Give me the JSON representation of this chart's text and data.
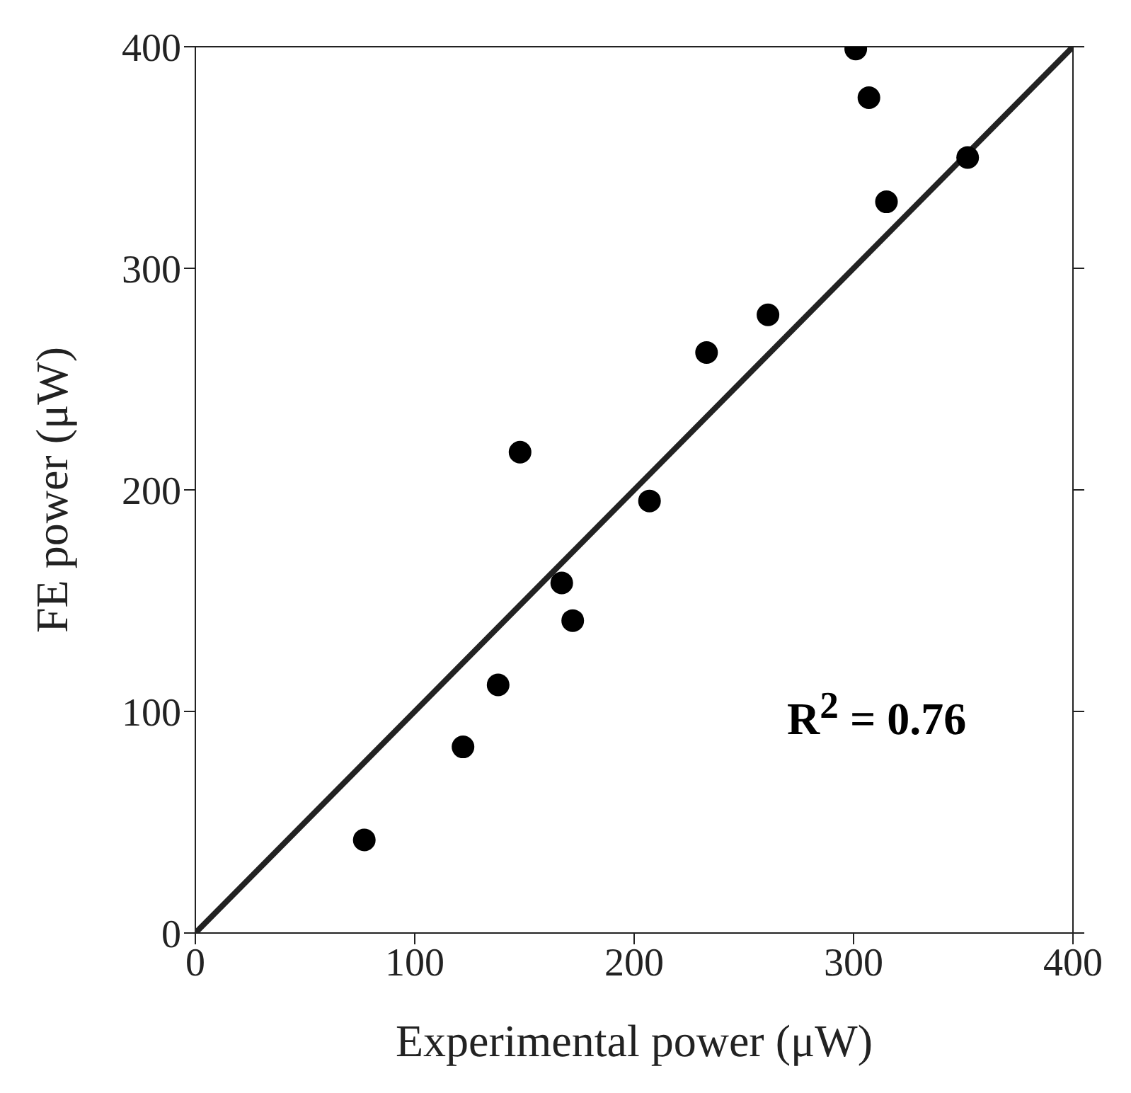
{
  "chart_data": {
    "type": "scatter",
    "xlabel": "Experimental power (μW)",
    "ylabel": "FE power (μW)",
    "xlim": [
      0,
      400
    ],
    "ylim": [
      0,
      400
    ],
    "xticks": [
      0,
      100,
      200,
      300,
      400
    ],
    "yticks": [
      0,
      100,
      200,
      300,
      400
    ],
    "annotations": [
      "R$^{2}$ = 0.76"
    ],
    "series": [
      {
        "marker": "circle",
        "color": "#000000",
        "x": [
          77,
          122,
          138,
          148,
          167,
          172,
          207,
          233,
          261,
          301,
          307,
          315,
          352
        ],
        "values": [
          42,
          84,
          112,
          217,
          158,
          141,
          195,
          262,
          279,
          399,
          377,
          330,
          350
        ]
      },
      {
        "type": "line",
        "marker": "none",
        "color": "#222222",
        "x": [
          0,
          400
        ],
        "values": [
          0,
          400
        ]
      }
    ]
  }
}
